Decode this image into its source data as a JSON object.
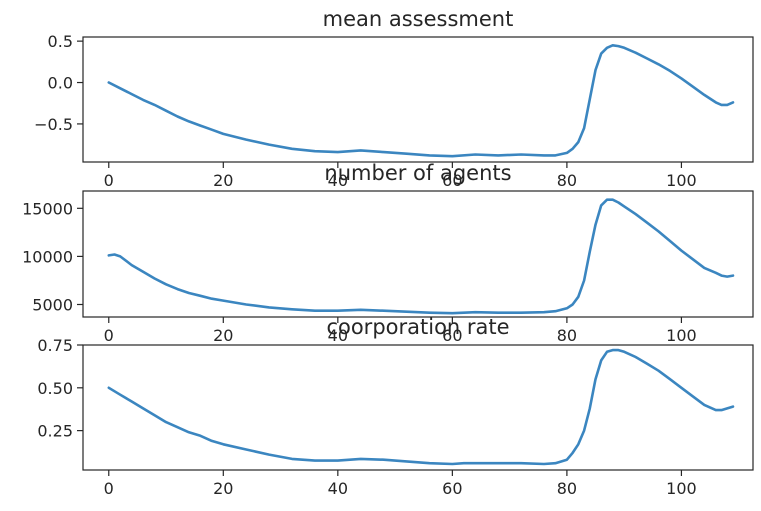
{
  "chart_data": [
    {
      "type": "line",
      "title": "mean assessment",
      "xlabel": "",
      "ylabel": "",
      "xlim": [
        -4.5,
        112.5
      ],
      "ylim": [
        -0.96,
        0.55
      ],
      "xticks": [
        0,
        20,
        40,
        60,
        80,
        100
      ],
      "xtick_labels": [
        "0",
        "20",
        "40",
        "60",
        "80",
        "100"
      ],
      "yticks": [
        0.5,
        0.0,
        -0.5
      ],
      "ytick_labels": [
        "0.5",
        "0.0",
        "−0.5"
      ],
      "color": "#3b86c0",
      "series": [
        {
          "x": [
            0,
            2,
            4,
            6,
            8,
            10,
            12,
            14,
            16,
            18,
            20,
            24,
            28,
            32,
            36,
            40,
            44,
            48,
            52,
            56,
            60,
            64,
            68,
            72,
            76,
            78,
            80,
            81,
            82,
            83,
            84,
            85,
            86,
            87,
            88,
            89,
            90,
            92,
            94,
            96,
            98,
            100,
            102,
            104,
            106,
            107,
            108,
            109
          ],
          "y": [
            0.0,
            -0.07,
            -0.14,
            -0.21,
            -0.27,
            -0.34,
            -0.41,
            -0.47,
            -0.52,
            -0.57,
            -0.62,
            -0.69,
            -0.75,
            -0.8,
            -0.83,
            -0.84,
            -0.82,
            -0.84,
            -0.86,
            -0.88,
            -0.89,
            -0.87,
            -0.88,
            -0.87,
            -0.88,
            -0.88,
            -0.85,
            -0.8,
            -0.72,
            -0.55,
            -0.2,
            0.15,
            0.35,
            0.42,
            0.45,
            0.44,
            0.42,
            0.36,
            0.29,
            0.22,
            0.14,
            0.05,
            -0.05,
            -0.15,
            -0.24,
            -0.27,
            -0.27,
            -0.24
          ]
        }
      ]
    },
    {
      "type": "line",
      "title": "number of agents",
      "xlabel": "",
      "ylabel": "",
      "xlim": [
        -4.5,
        112.5
      ],
      "ylim": [
        3700,
        16800
      ],
      "xticks": [
        0,
        20,
        40,
        60,
        80,
        100
      ],
      "xtick_labels": [
        "0",
        "20",
        "40",
        "60",
        "80",
        "100"
      ],
      "yticks": [
        15000,
        10000,
        5000
      ],
      "ytick_labels": [
        "15000",
        "10000",
        "5000"
      ],
      "color": "#3b86c0",
      "series": [
        {
          "x": [
            0,
            1,
            2,
            4,
            6,
            8,
            10,
            12,
            14,
            16,
            18,
            20,
            24,
            28,
            32,
            36,
            40,
            44,
            48,
            52,
            56,
            60,
            64,
            68,
            72,
            76,
            78,
            80,
            81,
            82,
            83,
            84,
            85,
            86,
            87,
            88,
            89,
            90,
            92,
            94,
            96,
            98,
            100,
            102,
            104,
            106,
            107,
            108,
            109
          ],
          "y": [
            10100,
            10200,
            10000,
            9100,
            8400,
            7700,
            7100,
            6600,
            6200,
            5900,
            5600,
            5400,
            5000,
            4700,
            4500,
            4350,
            4350,
            4450,
            4350,
            4250,
            4150,
            4100,
            4200,
            4150,
            4150,
            4200,
            4300,
            4600,
            5000,
            5800,
            7500,
            10500,
            13300,
            15300,
            15900,
            15900,
            15600,
            15200,
            14400,
            13500,
            12600,
            11600,
            10600,
            9700,
            8800,
            8300,
            8000,
            7900,
            8000
          ]
        }
      ]
    },
    {
      "type": "line",
      "title": "coorporation rate",
      "xlabel": "",
      "ylabel": "",
      "xlim": [
        -4.5,
        112.5
      ],
      "ylim": [
        0.02,
        0.75
      ],
      "xticks": [
        0,
        20,
        40,
        60,
        80,
        100
      ],
      "xtick_labels": [
        "0",
        "20",
        "40",
        "60",
        "80",
        "100"
      ],
      "yticks": [
        0.75,
        0.5,
        0.25
      ],
      "ytick_labels": [
        "0.75",
        "0.50",
        "0.25"
      ],
      "color": "#3b86c0",
      "series": [
        {
          "x": [
            0,
            2,
            4,
            6,
            8,
            10,
            12,
            14,
            16,
            18,
            20,
            24,
            28,
            32,
            36,
            40,
            44,
            48,
            52,
            56,
            60,
            62,
            64,
            68,
            72,
            76,
            78,
            80,
            81,
            82,
            83,
            84,
            85,
            86,
            87,
            88,
            89,
            90,
            92,
            94,
            96,
            98,
            100,
            102,
            104,
            106,
            107,
            108,
            109
          ],
          "y": [
            0.5,
            0.46,
            0.42,
            0.38,
            0.34,
            0.3,
            0.27,
            0.24,
            0.22,
            0.19,
            0.17,
            0.14,
            0.11,
            0.085,
            0.075,
            0.075,
            0.085,
            0.08,
            0.07,
            0.06,
            0.055,
            0.06,
            0.06,
            0.06,
            0.06,
            0.055,
            0.06,
            0.08,
            0.12,
            0.17,
            0.25,
            0.38,
            0.55,
            0.66,
            0.71,
            0.72,
            0.72,
            0.71,
            0.68,
            0.64,
            0.6,
            0.55,
            0.5,
            0.45,
            0.4,
            0.37,
            0.37,
            0.38,
            0.39
          ]
        }
      ]
    }
  ]
}
